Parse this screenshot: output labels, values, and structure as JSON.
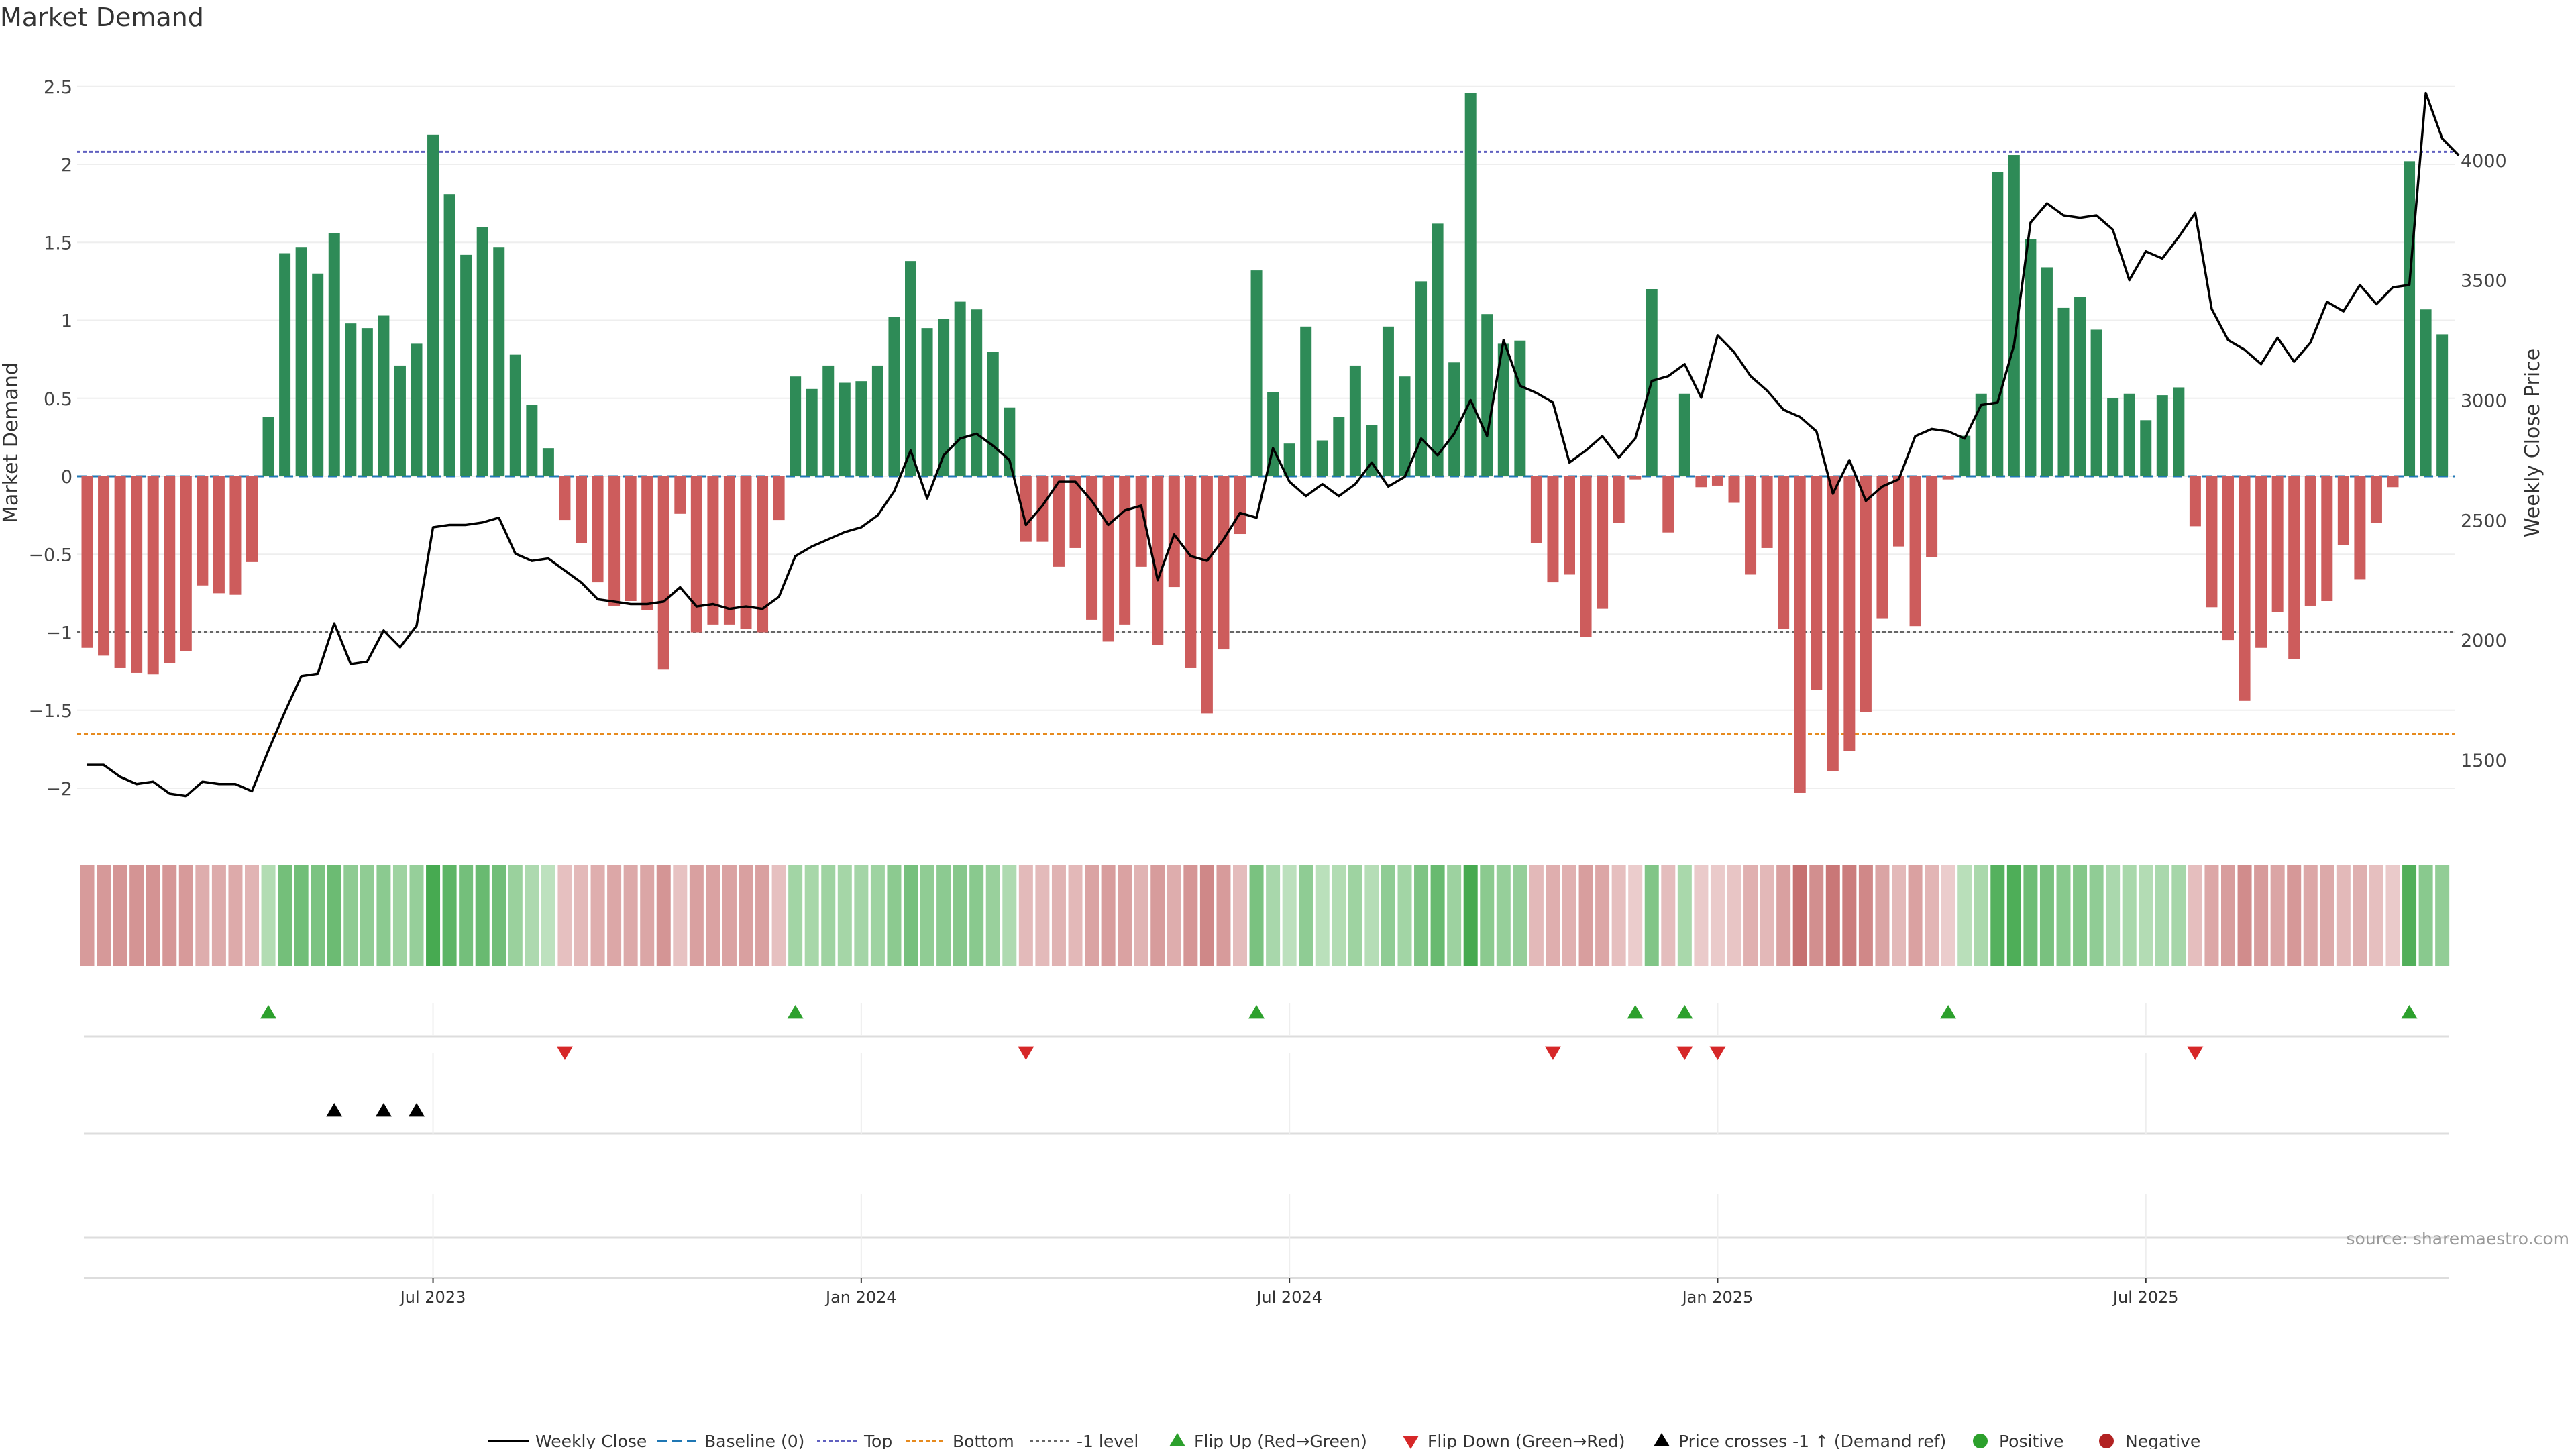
{
  "chart_data": {
    "type": "bar+line",
    "title": "Market Demand",
    "ylabel_left": "Market Demand",
    "ylabel_right": "Weekly Close Price",
    "ylim_left": [
      -2.3,
      2.6
    ],
    "ylim_right": [
      1200,
      4300
    ],
    "yticks_left": [
      2.5,
      2,
      1.5,
      1,
      0.5,
      0,
      -0.5,
      -1,
      -1.5,
      -2
    ],
    "ytick_labels_left": [
      "2.5",
      "2",
      "1.5",
      "1",
      "0.5",
      "0",
      "−0.5",
      "−1",
      "−1.5",
      "−2"
    ],
    "yticks_right": [
      1500,
      2000,
      2500,
      3000,
      3500,
      4000
    ],
    "ytick_labels_right": [
      "1500",
      "2000",
      "2500",
      "3000",
      "3500",
      "4000"
    ],
    "date_ticks": [
      "Jul 2023",
      "Jan 2024",
      "Jul 2024",
      "Jan 2025",
      "Jul 2025"
    ],
    "date_tick_index": [
      21,
      47,
      73,
      99,
      125
    ],
    "reference_lines": {
      "top": 2.08,
      "bottom": -1.65,
      "minus_one": -1.0
    },
    "demand": [
      -1.1,
      -1.15,
      -1.23,
      -1.26,
      -1.27,
      -1.2,
      -1.12,
      -0.7,
      -0.75,
      -0.76,
      -0.55,
      0.38,
      1.43,
      1.47,
      1.3,
      1.56,
      0.98,
      0.95,
      1.03,
      0.71,
      0.85,
      2.19,
      1.81,
      1.42,
      1.6,
      1.47,
      0.78,
      0.46,
      0.18,
      -0.28,
      -0.43,
      -0.68,
      -0.83,
      -0.8,
      -0.86,
      -1.24,
      -0.24,
      -1.0,
      -0.95,
      -0.95,
      -0.98,
      -1.0,
      -0.28,
      0.64,
      0.56,
      0.71,
      0.6,
      0.61,
      0.71,
      1.02,
      1.38,
      0.95,
      1.01,
      1.12,
      1.07,
      0.8,
      0.44,
      -0.42,
      -0.42,
      -0.58,
      -0.46,
      -0.92,
      -1.06,
      -0.95,
      -0.58,
      -1.08,
      -0.71,
      -1.23,
      -1.52,
      -1.11,
      -0.37,
      1.32,
      0.54,
      0.21,
      0.96,
      0.23,
      0.38,
      0.71,
      0.33,
      0.96,
      0.64,
      1.25,
      1.62,
      0.73,
      2.46,
      1.04,
      0.85,
      0.87,
      -0.43,
      -0.68,
      -0.63,
      -1.03,
      -0.85,
      -0.3,
      -0.02,
      1.2,
      -0.36,
      0.53,
      -0.07,
      -0.06,
      -0.17,
      -0.63,
      -0.46,
      -0.98,
      -2.03,
      -1.37,
      -1.89,
      -1.76,
      -1.51,
      -0.91,
      -0.45,
      -0.96,
      -0.52,
      -0.02,
      0.26,
      0.53,
      1.95,
      2.06,
      1.52,
      1.34,
      1.08,
      1.15,
      0.94,
      0.5,
      0.53,
      0.36,
      0.52,
      0.57,
      -0.32,
      -0.84,
      -1.05,
      -1.44,
      -1.1,
      -0.87,
      -1.17,
      -0.83,
      -0.8,
      -0.44,
      -0.66,
      -0.3,
      -0.07,
      2.02,
      1.07,
      0.91
    ],
    "weekly_close": [
      1480,
      1480,
      1430,
      1400,
      1410,
      1360,
      1350,
      1410,
      1400,
      1400,
      1370,
      1540,
      1700,
      1850,
      1860,
      2070,
      1900,
      1910,
      2040,
      1970,
      2060,
      2470,
      2480,
      2480,
      2490,
      2510,
      2360,
      2330,
      2340,
      2290,
      2240,
      2170,
      2160,
      2150,
      2150,
      2160,
      2220,
      2140,
      2150,
      2130,
      2140,
      2130,
      2180,
      2350,
      2390,
      2420,
      2450,
      2470,
      2520,
      2620,
      2790,
      2590,
      2770,
      2840,
      2860,
      2810,
      2750,
      2480,
      2560,
      2660,
      2660,
      2580,
      2480,
      2540,
      2560,
      2250,
      2440,
      2350,
      2330,
      2420,
      2530,
      2510,
      2800,
      2660,
      2600,
      2650,
      2600,
      2650,
      2740,
      2640,
      2680,
      2840,
      2770,
      2860,
      3000,
      2850,
      3250,
      3060,
      3030,
      2990,
      2740,
      2790,
      2850,
      2760,
      2840,
      3080,
      3100,
      3150,
      3010,
      3270,
      3200,
      3100,
      3040,
      2960,
      2930,
      2870,
      2610,
      2750,
      2580,
      2640,
      2670,
      2850,
      2880,
      2870,
      2840,
      2980,
      2990,
      3230,
      3740,
      3820,
      3770,
      3760,
      3770,
      3710,
      3500,
      3620,
      3590,
      3680,
      3780,
      3380,
      3250,
      3210,
      3150,
      3260,
      3160,
      3240,
      3410,
      3370,
      3480,
      3400,
      3470,
      3480,
      4280,
      4090,
      4020
    ],
    "flip_up_index": [
      11,
      43,
      71,
      94,
      97,
      113,
      141
    ],
    "flip_down_index": [
      29,
      57,
      89,
      97,
      99,
      128
    ],
    "price_cross_up_index": [
      15,
      18,
      20
    ],
    "legend": [
      "Weekly Close",
      "Baseline (0)",
      "Top",
      "Bottom",
      "-1 level",
      "Flip Up (Red→Green)",
      "Flip Down (Green→Red)",
      "Price crosses -1 ↑ (Demand ref)",
      "Positive",
      "Negative"
    ],
    "colors": {
      "positive": "#2e8b57",
      "negative": "#cd5c5c",
      "line": "#000000",
      "baseline": "#1f77b4",
      "top": "#6060c0",
      "bottom": "#e68a1e",
      "minus_one": "#666666",
      "flip_up": "#2ca02c",
      "flip_down": "#d62728",
      "positive_dot": "#2ca02c",
      "negative_dot": "#b22222"
    }
  },
  "source": "source: sharemaestro.com"
}
